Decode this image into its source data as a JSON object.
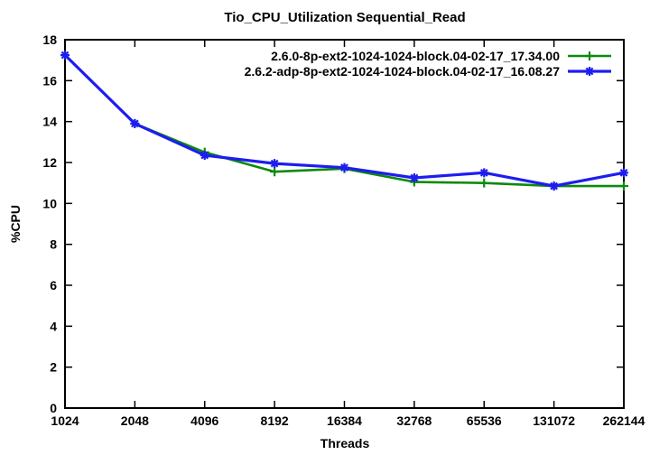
{
  "chart_data": {
    "type": "line",
    "title": "Tio_CPU_Utilization Sequential_Read",
    "xlabel": "Threads",
    "ylabel": "%CPU",
    "x_scale": "log2",
    "categories": [
      "1024",
      "2048",
      "4096",
      "8192",
      "16384",
      "32768",
      "65536",
      "131072",
      "262144"
    ],
    "ylim": [
      0,
      18
    ],
    "y_ticks": [
      0,
      2,
      4,
      6,
      8,
      10,
      12,
      14,
      16,
      18
    ],
    "grid": false,
    "legend_position": "top-right-inside",
    "frame_color": "#000000",
    "series": [
      {
        "name": "2.6.0-8p-ext2-1024-1024-block.04-02-17_17.34.00",
        "color": "#0c8a0c",
        "marker": "plus",
        "values": [
          17.25,
          13.9,
          12.5,
          11.55,
          11.7,
          11.05,
          11.0,
          10.85,
          10.85
        ]
      },
      {
        "name": "2.6.2-adp-8p-ext2-1024-1024-block.04-02-17_16.08.27",
        "color": "#1d1df0",
        "marker": "asterisk",
        "values": [
          17.25,
          13.9,
          12.35,
          11.95,
          11.75,
          11.25,
          11.5,
          10.85,
          11.5
        ]
      }
    ]
  }
}
